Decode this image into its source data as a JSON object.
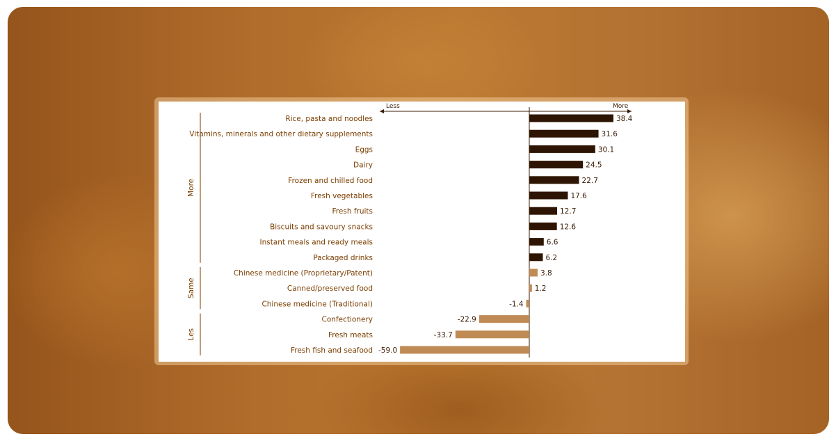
{
  "chart_data": {
    "type": "bar",
    "orientation": "horizontal",
    "direction_labels": {
      "left": "Less",
      "right": "More"
    },
    "groups": [
      {
        "name": "More",
        "start": 0,
        "end": 9
      },
      {
        "name": "Same",
        "start": 10,
        "end": 12
      },
      {
        "name": "Les",
        "start": 13,
        "end": 15
      }
    ],
    "categories": [
      "Rice, pasta and noodles",
      "Vitamins, minerals and other dietary supplements",
      "Eggs",
      "Dairy",
      "Frozen and chilled food",
      "Fresh vegetables",
      "Fresh fruits",
      "Biscuits and savoury snacks",
      "Instant meals and ready meals",
      "Packaged drinks",
      "Chinese medicine (Proprietary/Patent)",
      "Canned/preserved food",
      "Chinese medicine (Traditional)",
      "Confectionery",
      "Fresh meats",
      "Fresh fish and seafood"
    ],
    "values": [
      38.4,
      31.6,
      30.1,
      24.5,
      22.7,
      17.6,
      12.7,
      12.6,
      6.6,
      6.2,
      3.8,
      1.2,
      -1.4,
      -22.9,
      -33.7,
      -59.0
    ],
    "value_labels": [
      "38.4",
      "31.6",
      "30.1",
      "24.5",
      "22.7",
      "17.6",
      "12.7",
      "12.6",
      "6.6",
      "6.2",
      "3.8",
      "1.2",
      "-1.4",
      "-22.9",
      "-33.7",
      "-59.0"
    ],
    "xlim": [
      -59.0,
      38.4
    ],
    "colors": {
      "more": "#2e1503",
      "other": "#c08a55",
      "text": "#7a3e00",
      "axis": "#3a1c05"
    }
  }
}
